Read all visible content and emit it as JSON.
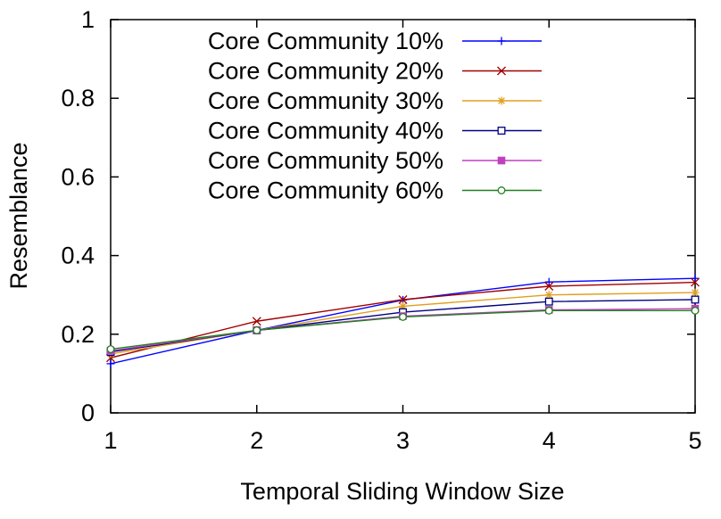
{
  "chart_data": {
    "type": "line",
    "xlabel": "Temporal Sliding Window Size",
    "ylabel": "Resemblance",
    "x": [
      1,
      2,
      3,
      4,
      5
    ],
    "xlim": [
      1,
      5
    ],
    "ylim": [
      0,
      1
    ],
    "xticks": [
      "1",
      "2",
      "3",
      "4",
      "5"
    ],
    "yticks": [
      "0",
      "0.2",
      "0.4",
      "0.6",
      "0.8",
      "1"
    ],
    "grid": false,
    "legend_position": "top-left",
    "series": [
      {
        "name": "Core Community 10%",
        "color": "#0000ff",
        "marker": "plus",
        "values": [
          0.125,
          0.21,
          0.287,
          0.333,
          0.342
        ]
      },
      {
        "name": "Core Community 20%",
        "color": "#a00000",
        "marker": "x",
        "values": [
          0.14,
          0.233,
          0.288,
          0.322,
          0.332
        ]
      },
      {
        "name": "Core Community 30%",
        "color": "#e0a020",
        "marker": "star",
        "values": [
          0.15,
          0.21,
          0.271,
          0.3,
          0.306
        ]
      },
      {
        "name": "Core Community 40%",
        "color": "#000080",
        "marker": "square-open",
        "values": [
          0.155,
          0.21,
          0.256,
          0.283,
          0.288
        ]
      },
      {
        "name": "Core Community 50%",
        "color": "#c040c0",
        "marker": "square-filled",
        "values": [
          0.158,
          0.21,
          0.246,
          0.262,
          0.265
        ]
      },
      {
        "name": "Core Community 60%",
        "color": "#208020",
        "marker": "circle-open",
        "values": [
          0.162,
          0.21,
          0.244,
          0.26,
          0.26
        ]
      }
    ]
  }
}
